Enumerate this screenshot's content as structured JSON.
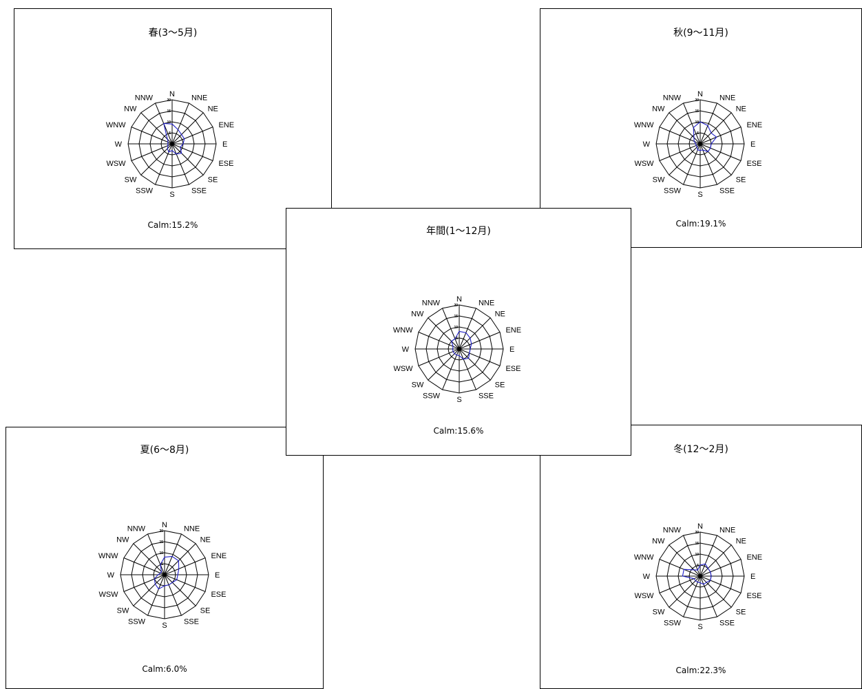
{
  "chart_data": [
    {
      "type": "radar",
      "title": "春(3～5月)",
      "calm": "Calm:15.2%",
      "directions": [
        "N",
        "NNE",
        "NE",
        "ENE",
        "E",
        "ESE",
        "SE",
        "SSE",
        "S",
        "SSW",
        "SW",
        "WSW",
        "W",
        "WNW",
        "NW",
        "NNW"
      ],
      "ring_labels": [
        "5",
        "10",
        "15",
        "20"
      ],
      "rmax": 20,
      "series": [
        {
          "values": [
            9,
            7,
            6,
            6,
            5,
            4,
            6,
            5,
            3,
            4,
            3,
            2,
            2,
            2,
            3,
            10
          ]
        }
      ],
      "color": "#1e1ec8"
    },
    {
      "type": "radar",
      "title": "秋(9～11月)",
      "calm": "Calm:19.1%",
      "directions": [
        "N",
        "NNE",
        "NE",
        "ENE",
        "E",
        "ESE",
        "SE",
        "SSE",
        "S",
        "SSW",
        "SW",
        "WSW",
        "W",
        "WNW",
        "NW",
        "NNW"
      ],
      "ring_labels": [
        "5",
        "10",
        "15",
        "20"
      ],
      "rmax": 20,
      "series": [
        {
          "values": [
            10,
            9,
            7,
            8,
            5,
            5,
            5,
            3,
            3,
            3,
            2,
            2,
            2,
            3,
            4,
            8
          ]
        }
      ],
      "color": "#1e1ec8"
    },
    {
      "type": "radar",
      "title": "年間(1～12月)",
      "calm": "Calm:15.6%",
      "directions": [
        "N",
        "NNE",
        "NE",
        "ENE",
        "E",
        "ESE",
        "SE",
        "SSE",
        "S",
        "SSW",
        "SW",
        "WSW",
        "W",
        "WNW",
        "NW",
        "NNW"
      ],
      "ring_labels": [
        "5",
        "10",
        "15",
        "20"
      ],
      "rmax": 20,
      "series": [
        {
          "values": [
            8,
            8,
            7,
            6,
            5,
            5,
            6,
            5,
            3,
            3,
            3,
            3,
            3,
            3,
            5,
            5
          ]
        }
      ],
      "color": "#1e1ec8"
    },
    {
      "type": "radar",
      "title": "夏(6～8月)",
      "calm": "Calm:6.0%",
      "directions": [
        "N",
        "NNE",
        "NE",
        "ENE",
        "E",
        "ESE",
        "SE",
        "SSE",
        "S",
        "SSW",
        "SW",
        "WSW",
        "W",
        "WNW",
        "NW",
        "NNW"
      ],
      "ring_labels": [
        "5",
        "10",
        "15",
        "20"
      ],
      "rmax": 20,
      "series": [
        {
          "values": [
            8,
            9,
            9,
            7,
            6,
            6,
            5,
            5,
            5,
            7,
            6,
            5,
            3,
            2,
            2,
            5
          ]
        }
      ],
      "color": "#1e1ec8"
    },
    {
      "type": "radar",
      "title": "冬(12～2月)",
      "calm": "Calm:22.3%",
      "directions": [
        "N",
        "NNE",
        "NE",
        "ENE",
        "E",
        "ESE",
        "SE",
        "SSE",
        "S",
        "SSW",
        "SW",
        "WSW",
        "W",
        "WNW",
        "NW",
        "NNW"
      ],
      "ring_labels": [
        "5",
        "10",
        "15",
        "20"
      ],
      "rmax": 20,
      "series": [
        {
          "values": [
            5,
            6,
            5,
            5,
            5,
            5,
            4,
            4,
            3,
            3,
            3,
            3,
            8,
            8,
            4,
            3
          ]
        }
      ],
      "color": "#1e1ec8"
    }
  ]
}
